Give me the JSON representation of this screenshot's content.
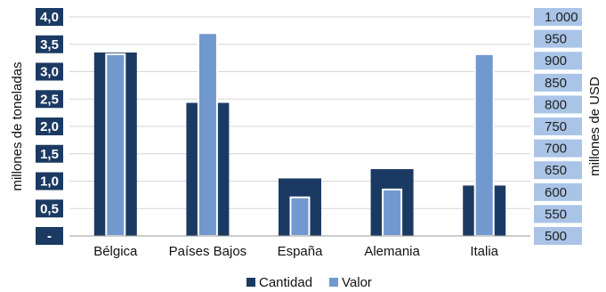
{
  "chart_data": {
    "type": "bar",
    "categories": [
      "Bélgica",
      "Países Bajos",
      "España",
      "Alemania",
      "Italia"
    ],
    "series": [
      {
        "name": "Cantidad",
        "axis": "left",
        "values": [
          3.35,
          2.43,
          1.05,
          1.22,
          0.92
        ],
        "color": "#1b3a63"
      },
      {
        "name": "Valor",
        "axis": "right",
        "values": [
          915,
          963,
          588,
          606,
          915
        ],
        "color": "#7199cf"
      }
    ],
    "y_left": {
      "label": "millones de toneladas",
      "range": [
        0,
        4
      ],
      "tick_labels": [
        "-",
        "0,5",
        "1,0",
        "1,5",
        "2,0",
        "2,5",
        "3,0",
        "3,5",
        "4,0"
      ]
    },
    "y_right": {
      "label": "millones de USD",
      "range": [
        500,
        1000
      ],
      "tick_labels": [
        "500",
        "550",
        "600",
        "650",
        "700",
        "750",
        "800",
        "850",
        "900",
        "950",
        "1.000"
      ]
    },
    "grid": true,
    "legend_placement": "bottom-center"
  }
}
